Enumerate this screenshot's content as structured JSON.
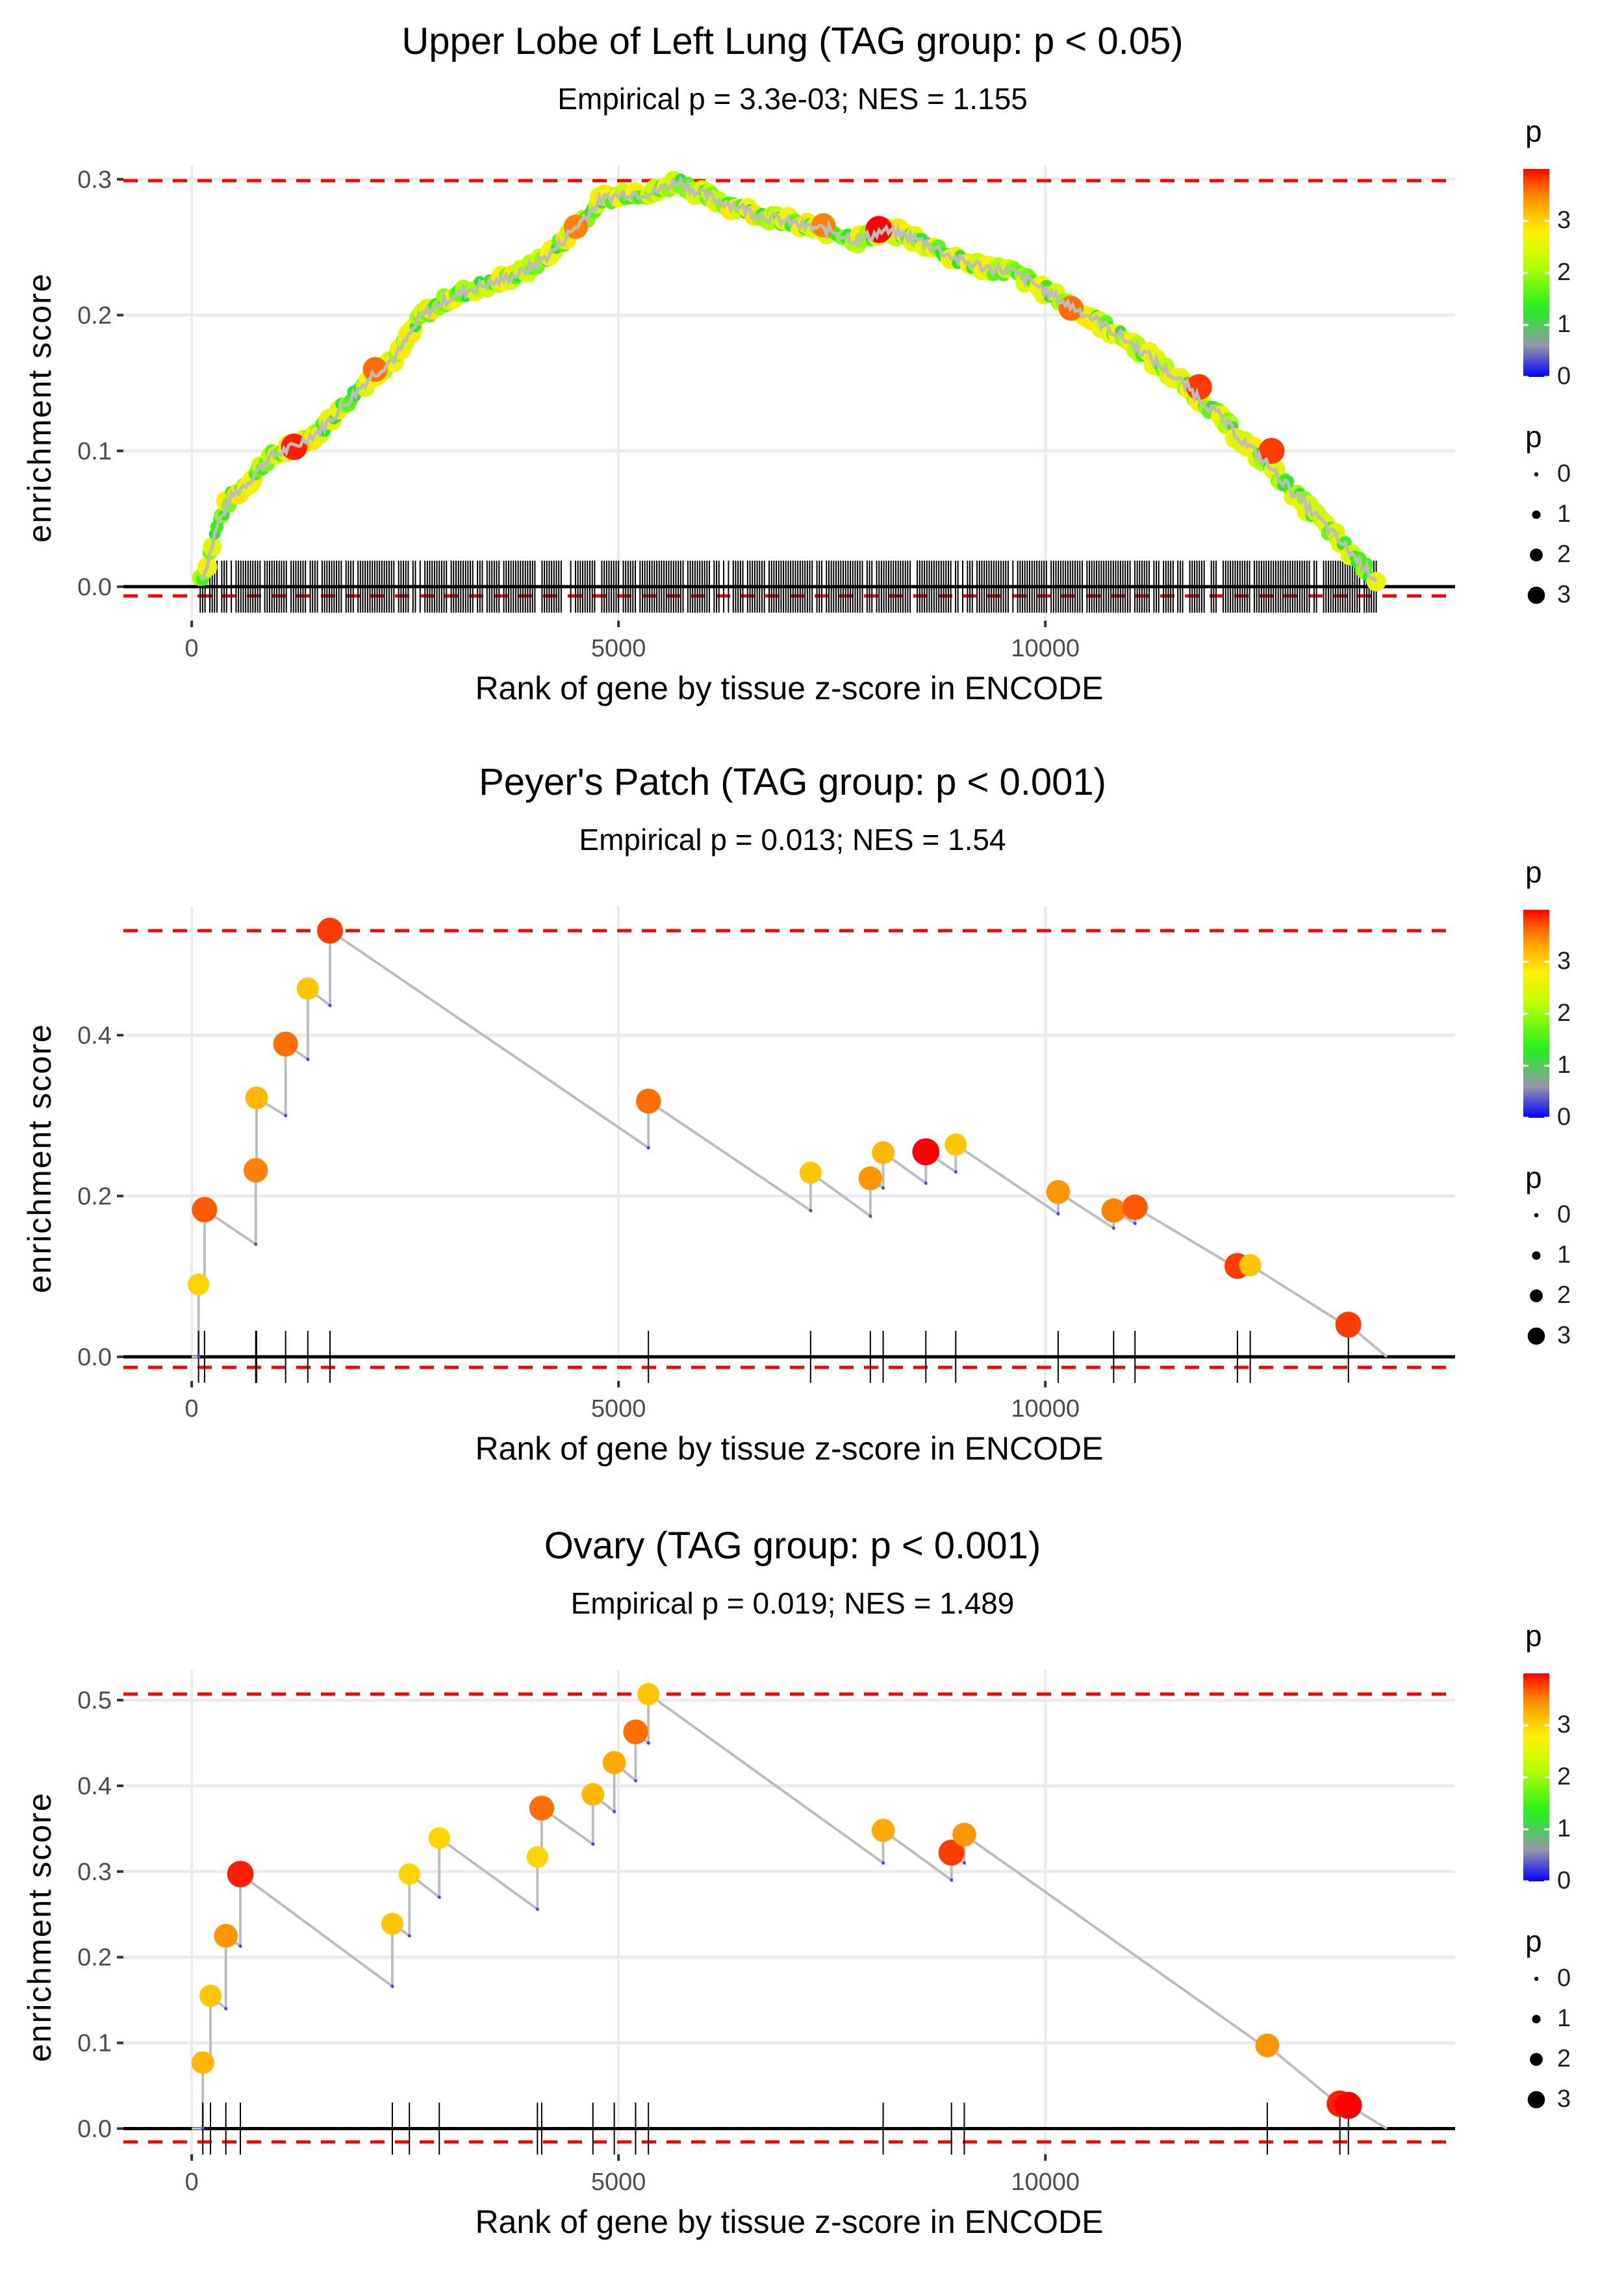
{
  "chart_data": [
    {
      "type": "line",
      "title": "Upper Lobe of Left Lung (TAG group: p < 0.05)",
      "subtitle": "Empirical p = 3.3e-03; NES = 1.155",
      "xlabel": "Rank of gene by tissue z-score in ENCODE",
      "ylabel": "enrichment score",
      "xlim": [
        -800,
        14800
      ],
      "ylim": [
        -0.025,
        0.31
      ],
      "xticks": [
        0,
        5000,
        10000
      ],
      "xtick_labels": [
        "0",
        "5000",
        "10000"
      ],
      "yticks": [
        0.0,
        0.1,
        0.2,
        0.3
      ],
      "ytick_labels": [
        "0.0",
        "0.1",
        "0.2",
        "0.3"
      ],
      "max_es": 0.299,
      "min_es": -0.002,
      "dense": true,
      "curve_waypoints": {
        "x": [
          0,
          150,
          300,
          450,
          700,
          900,
          1200,
          1500,
          1800,
          2100,
          2400,
          2700,
          3000,
          3300,
          3600,
          3900,
          4200,
          4500,
          4800,
          5100,
          5400,
          5700,
          6000,
          6300,
          6600,
          6900,
          7200,
          7500,
          7800,
          8100,
          8400,
          8700,
          9000,
          9300,
          9600,
          9900,
          10200,
          10500,
          10800,
          11100,
          11400,
          11700,
          12000,
          12300,
          12600,
          12900,
          13200,
          13500,
          13800,
          14000
        ],
        "y": [
          0.0,
          0.01,
          0.045,
          0.065,
          0.08,
          0.095,
          0.103,
          0.115,
          0.135,
          0.155,
          0.17,
          0.2,
          0.212,
          0.22,
          0.225,
          0.232,
          0.245,
          0.265,
          0.285,
          0.29,
          0.29,
          0.299,
          0.288,
          0.282,
          0.275,
          0.27,
          0.265,
          0.262,
          0.255,
          0.262,
          0.258,
          0.25,
          0.24,
          0.235,
          0.232,
          0.222,
          0.21,
          0.2,
          0.188,
          0.175,
          0.16,
          0.145,
          0.128,
          0.108,
          0.09,
          0.07,
          0.05,
          0.03,
          0.01,
          0.0
        ]
      },
      "highlight_points": [
        {
          "x": 1200,
          "y": 0.103,
          "p": 3.9
        },
        {
          "x": 2150,
          "y": 0.16,
          "p": 3.6
        },
        {
          "x": 4500,
          "y": 0.265,
          "p": 3.5
        },
        {
          "x": 7400,
          "y": 0.266,
          "p": 3.5
        },
        {
          "x": 8050,
          "y": 0.263,
          "p": 4.0
        },
        {
          "x": 10300,
          "y": 0.205,
          "p": 3.6
        },
        {
          "x": 11800,
          "y": 0.147,
          "p": 3.8
        },
        {
          "x": 12650,
          "y": 0.1,
          "p": 3.8
        }
      ],
      "colorbar": {
        "title": "p",
        "ticks": [
          0,
          1,
          2,
          3
        ],
        "range": [
          0,
          4
        ]
      },
      "size_legend": {
        "title": "p",
        "labels": [
          "0",
          "1",
          "2",
          "3"
        ]
      }
    },
    {
      "type": "line",
      "title": "Peyer's Patch (TAG group: p < 0.001)",
      "subtitle": "Empirical p = 0.013; NES = 1.54",
      "xlabel": "Rank of gene by tissue z-score in ENCODE",
      "ylabel": "enrichment score",
      "xlim": [
        -800,
        14800
      ],
      "ylim": [
        -0.03,
        0.56
      ],
      "xticks": [
        0,
        5000,
        10000
      ],
      "xtick_labels": [
        "0",
        "5000",
        "10000"
      ],
      "yticks": [
        0.0,
        0.2,
        0.4
      ],
      "ytick_labels": [
        "0.0",
        "0.2",
        "0.4"
      ],
      "max_es": 0.53,
      "min_es": -0.005,
      "dense": false,
      "end_x": 14000,
      "hits": [
        {
          "x": 80,
          "pre": 0.0,
          "y": 0.09,
          "p": 3.0
        },
        {
          "x": 150,
          "pre": 0.088,
          "y": 0.183,
          "p": 3.7
        },
        {
          "x": 750,
          "pre": 0.14,
          "y": 0.232,
          "p": 3.5
        },
        {
          "x": 760,
          "pre": 0.231,
          "y": 0.322,
          "p": 3.2
        },
        {
          "x": 1100,
          "pre": 0.3,
          "y": 0.389,
          "p": 3.6
        },
        {
          "x": 1360,
          "pre": 0.37,
          "y": 0.458,
          "p": 3.1
        },
        {
          "x": 1620,
          "pre": 0.437,
          "y": 0.53,
          "p": 3.8
        },
        {
          "x": 5350,
          "pre": 0.26,
          "y": 0.318,
          "p": 3.6
        },
        {
          "x": 7250,
          "pre": 0.182,
          "y": 0.229,
          "p": 3.1
        },
        {
          "x": 7950,
          "pre": 0.175,
          "y": 0.222,
          "p": 3.4
        },
        {
          "x": 8100,
          "pre": 0.21,
          "y": 0.254,
          "p": 3.2
        },
        {
          "x": 8600,
          "pre": 0.216,
          "y": 0.255,
          "p": 4.0
        },
        {
          "x": 8950,
          "pre": 0.23,
          "y": 0.264,
          "p": 3.1
        },
        {
          "x": 10150,
          "pre": 0.178,
          "y": 0.205,
          "p": 3.4
        },
        {
          "x": 10800,
          "pre": 0.16,
          "y": 0.182,
          "p": 3.5
        },
        {
          "x": 11050,
          "pre": 0.166,
          "y": 0.186,
          "p": 3.7
        },
        {
          "x": 12250,
          "pre": 0.11,
          "y": 0.113,
          "p": 3.8
        },
        {
          "x": 12400,
          "pre": 0.108,
          "y": 0.114,
          "p": 3.1
        },
        {
          "x": 13550,
          "pre": 0.037,
          "y": 0.04,
          "p": 3.8
        }
      ],
      "colorbar": {
        "title": "p",
        "ticks": [
          0,
          1,
          2,
          3
        ],
        "range": [
          0,
          4
        ]
      },
      "size_legend": {
        "title": "p",
        "labels": [
          "0",
          "1",
          "2",
          "3"
        ]
      }
    },
    {
      "type": "line",
      "title": "Ovary (TAG group: p < 0.001)",
      "subtitle": "Empirical p = 0.019; NES = 1.489",
      "xlabel": "Rank of gene by tissue z-score in ENCODE",
      "ylabel": "enrichment score",
      "xlim": [
        -800,
        14800
      ],
      "ylim": [
        -0.03,
        0.535
      ],
      "xticks": [
        0,
        5000,
        10000
      ],
      "xtick_labels": [
        "0",
        "5000",
        "10000"
      ],
      "yticks": [
        0.0,
        0.1,
        0.2,
        0.3,
        0.4,
        0.5
      ],
      "ytick_labels": [
        "0.0",
        "0.1",
        "0.2",
        "0.3",
        "0.4",
        "0.5"
      ],
      "max_es": 0.507,
      "min_es": -0.008,
      "dense": false,
      "end_x": 14000,
      "hits": [
        {
          "x": 130,
          "pre": 0.0,
          "y": 0.077,
          "p": 3.2
        },
        {
          "x": 220,
          "pre": 0.07,
          "y": 0.155,
          "p": 3.1
        },
        {
          "x": 400,
          "pre": 0.14,
          "y": 0.225,
          "p": 3.4
        },
        {
          "x": 570,
          "pre": 0.213,
          "y": 0.297,
          "p": 3.9
        },
        {
          "x": 2350,
          "pre": 0.166,
          "y": 0.239,
          "p": 3.1
        },
        {
          "x": 2550,
          "pre": 0.225,
          "y": 0.297,
          "p": 3.0
        },
        {
          "x": 2900,
          "pre": 0.27,
          "y": 0.339,
          "p": 3.0
        },
        {
          "x": 4050,
          "pre": 0.256,
          "y": 0.317,
          "p": 3.0
        },
        {
          "x": 4100,
          "pre": 0.312,
          "y": 0.374,
          "p": 3.6
        },
        {
          "x": 4700,
          "pre": 0.332,
          "y": 0.39,
          "p": 3.2
        },
        {
          "x": 4950,
          "pre": 0.37,
          "y": 0.427,
          "p": 3.3
        },
        {
          "x": 5200,
          "pre": 0.406,
          "y": 0.463,
          "p": 3.6
        },
        {
          "x": 5350,
          "pre": 0.45,
          "y": 0.507,
          "p": 3.1
        },
        {
          "x": 8100,
          "pre": 0.31,
          "y": 0.348,
          "p": 3.3
        },
        {
          "x": 8900,
          "pre": 0.29,
          "y": 0.322,
          "p": 3.8
        },
        {
          "x": 9050,
          "pre": 0.31,
          "y": 0.343,
          "p": 3.4
        },
        {
          "x": 12600,
          "pre": 0.093,
          "y": 0.097,
          "p": 3.4
        },
        {
          "x": 13450,
          "pre": 0.027,
          "y": 0.029,
          "p": 3.9
        },
        {
          "x": 13550,
          "pre": 0.024,
          "y": 0.027,
          "p": 4.0
        }
      ],
      "colorbar": {
        "title": "p",
        "ticks": [
          0,
          1,
          2,
          3
        ],
        "range": [
          0,
          4
        ]
      },
      "size_legend": {
        "title": "p",
        "labels": [
          "0",
          "1",
          "2",
          "3"
        ]
      }
    }
  ]
}
